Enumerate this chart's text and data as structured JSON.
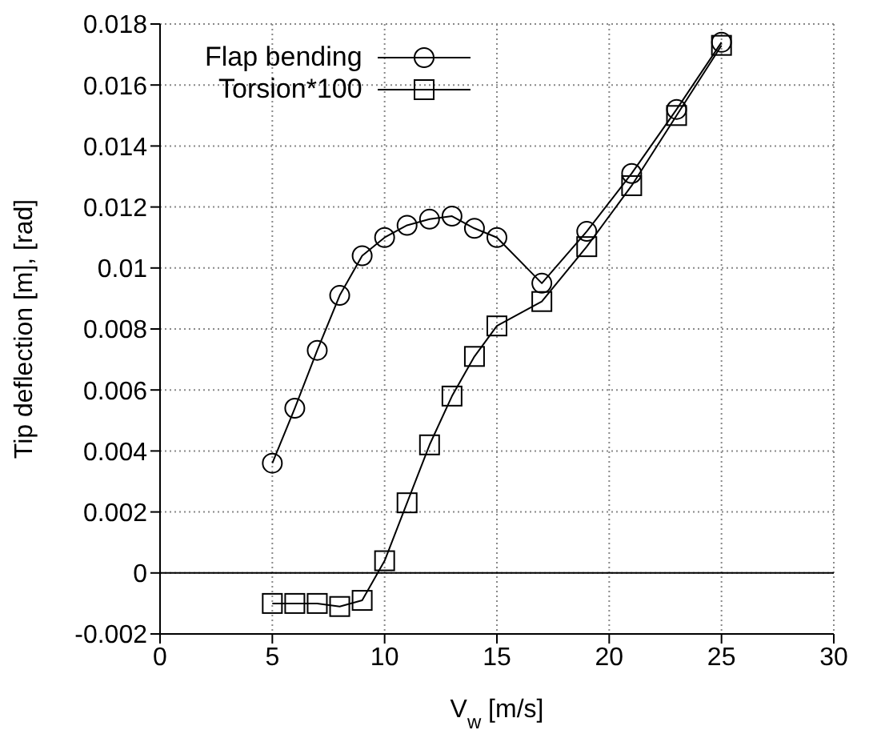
{
  "chart_data": {
    "type": "line",
    "xlabel": "V$_{w}$ [m/s]",
    "ylabel": "Tip deflection [m], [rad]",
    "xlim": [
      0,
      30
    ],
    "xticks": [
      0,
      5,
      10,
      15,
      20,
      25,
      30
    ],
    "ylim": [
      -0.002,
      0.018
    ],
    "yticks": [
      -0.002,
      0,
      0.002,
      0.004,
      0.006,
      0.008,
      0.01,
      0.012,
      0.014,
      0.016,
      0.018
    ],
    "grid": true,
    "legend": "top left",
    "line_style": "solid",
    "ref_lines": [
      {
        "axis": "y",
        "value": 0,
        "color": "#000000",
        "line_style": "solid"
      }
    ],
    "series": [
      {
        "name": "Flap bending",
        "color": "#000000",
        "marker": "circle",
        "x": [
          5,
          6,
          7,
          8,
          9,
          10,
          11,
          12,
          13,
          14,
          15,
          17,
          19,
          21,
          23,
          25
        ],
        "values": [
          0.0036,
          0.0054,
          0.0073,
          0.0091,
          0.0104,
          0.011,
          0.0114,
          0.0116,
          0.0117,
          0.0113,
          0.011,
          0.0095,
          0.0112,
          0.0131,
          0.0152,
          0.0174
        ]
      },
      {
        "name": "Torsion*100",
        "color": "#000000",
        "marker": "square",
        "x": [
          5,
          6,
          7,
          8,
          9,
          10,
          11,
          12,
          13,
          14,
          15,
          17,
          19,
          21,
          23,
          25
        ],
        "values": [
          -0.001,
          -0.001,
          -0.001,
          -0.0011,
          -0.0009,
          0.0004,
          0.0023,
          0.0042,
          0.0058,
          0.0071,
          0.0081,
          0.0089,
          0.0107,
          0.0127,
          0.015,
          0.0173
        ]
      }
    ]
  }
}
